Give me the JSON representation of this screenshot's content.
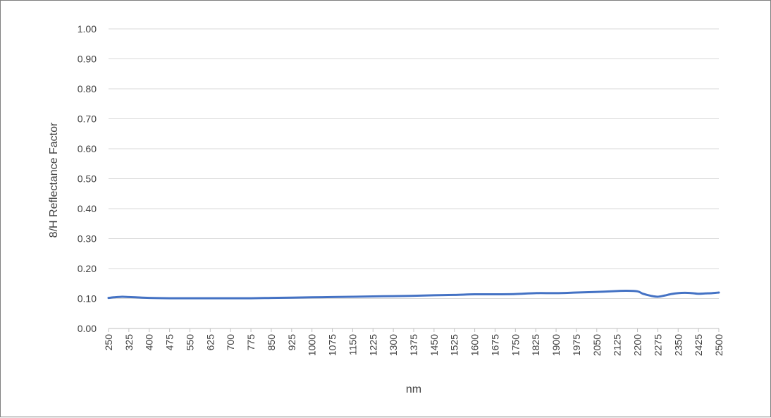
{
  "chart_data": {
    "type": "line",
    "title": "",
    "xlabel": "nm",
    "ylabel": "8/H Reflectance Factor",
    "xlim": [
      250,
      2500
    ],
    "ylim": [
      0,
      1
    ],
    "grid": true,
    "legend": "none",
    "x_ticks": [
      "250",
      "325",
      "400",
      "475",
      "550",
      "625",
      "700",
      "775",
      "850",
      "925",
      "1000",
      "1075",
      "1150",
      "1225",
      "1300",
      "1375",
      "1450",
      "1525",
      "1600",
      "1675",
      "1750",
      "1825",
      "1900",
      "1975",
      "2050",
      "2125",
      "2200",
      "2275",
      "2350",
      "2425",
      "2500"
    ],
    "y_ticks": [
      "0.00",
      "0.10",
      "0.20",
      "0.30",
      "0.40",
      "0.50",
      "0.60",
      "0.70",
      "0.80",
      "0.90",
      "1.00"
    ],
    "colors": {
      "line": "#4472c4",
      "grid": "#d9d9d9",
      "axis": "#bfbfbf"
    },
    "series": [
      {
        "x": [
          250,
          270,
          300,
          325,
          350,
          400,
          475,
          550,
          625,
          700,
          775,
          850,
          925,
          1000,
          1075,
          1150,
          1225,
          1300,
          1375,
          1450,
          1525,
          1600,
          1675,
          1750,
          1825,
          1900,
          1975,
          2050,
          2125,
          2160,
          2200,
          2220,
          2250,
          2275,
          2300,
          2325,
          2350,
          2375,
          2400,
          2425,
          2450,
          2475,
          2500
        ],
        "y": [
          0.102,
          0.104,
          0.106,
          0.105,
          0.104,
          0.102,
          0.101,
          0.101,
          0.101,
          0.101,
          0.101,
          0.102,
          0.103,
          0.104,
          0.105,
          0.106,
          0.107,
          0.108,
          0.109,
          0.111,
          0.112,
          0.114,
          0.114,
          0.115,
          0.118,
          0.118,
          0.12,
          0.122,
          0.125,
          0.126,
          0.124,
          0.116,
          0.109,
          0.106,
          0.11,
          0.115,
          0.118,
          0.119,
          0.118,
          0.116,
          0.117,
          0.118,
          0.12
        ]
      }
    ]
  }
}
